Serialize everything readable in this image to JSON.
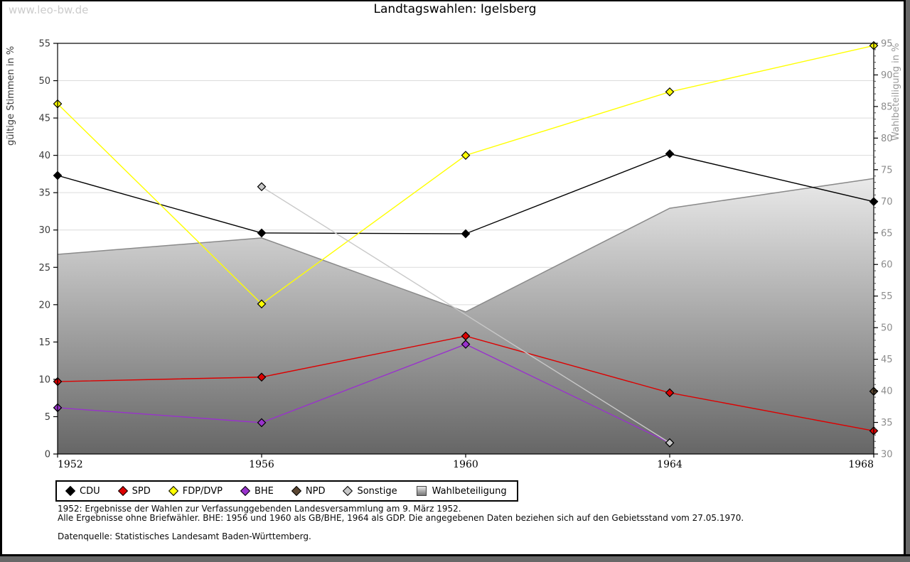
{
  "watermark": "www.leo-bw.de",
  "title": "Landtagswahlen: Igelsberg",
  "chart_data": {
    "type": "line",
    "title": "Landtagswahlen: Igelsberg",
    "categories": [
      "1952",
      "1956",
      "1960",
      "1964",
      "1968"
    ],
    "left_axis": {
      "label": "gültige Stimmen in %",
      "min": 0,
      "max": 55,
      "tick_step": 5
    },
    "right_axis": {
      "label": "Wahlbeteiligung in %",
      "min": 30,
      "max": 95,
      "tick_step": 5,
      "minor_tick_step": 1
    },
    "grid": "horizontal",
    "legend_position": "bottom",
    "series": [
      {
        "name": "CDU",
        "type": "line",
        "axis": "left",
        "color": "#000000",
        "values": [
          37.3,
          29.6,
          29.5,
          40.2,
          33.8
        ]
      },
      {
        "name": "SPD",
        "type": "line",
        "axis": "left",
        "color": "#dd0000",
        "values": [
          9.7,
          10.3,
          15.8,
          8.2,
          3.1
        ]
      },
      {
        "name": "FDP/DVP",
        "type": "line",
        "axis": "left",
        "color": "#ffff00",
        "values": [
          46.9,
          20.1,
          40.0,
          48.5,
          54.7
        ]
      },
      {
        "name": "BHE",
        "type": "line",
        "axis": "left",
        "color": "#9932cc",
        "values": [
          6.2,
          4.2,
          14.7,
          1.5,
          null
        ]
      },
      {
        "name": "NPD",
        "type": "line",
        "axis": "left",
        "color": "#5b4631",
        "values": [
          null,
          null,
          null,
          null,
          8.4
        ]
      },
      {
        "name": "Sonstige",
        "type": "line",
        "axis": "left",
        "color": "#c8c8c8",
        "values": [
          null,
          35.8,
          null,
          1.5,
          null
        ]
      },
      {
        "name": "Wahlbeteiligung",
        "type": "area",
        "axis": "right",
        "color": "#8a8a8a",
        "fill_top": "#fbfbfb",
        "fill_bottom": "#666666",
        "values": [
          61.6,
          64.2,
          52.5,
          68.9,
          73.6
        ]
      }
    ]
  },
  "footnotes": {
    "line1": "1952: Ergebnisse der Wahlen zur Verfassunggebenden Landesversammlung am 9. März 1952.",
    "line2": "Alle Ergebnisse ohne Briefwähler. BHE: 1956 und 1960 als GB/BHE, 1964 als GDP. Die angegebenen Daten beziehen sich auf den Gebietsstand vom 27.05.1970.",
    "source": "Datenquelle: Statistisches Landesamt Baden-Württemberg."
  }
}
